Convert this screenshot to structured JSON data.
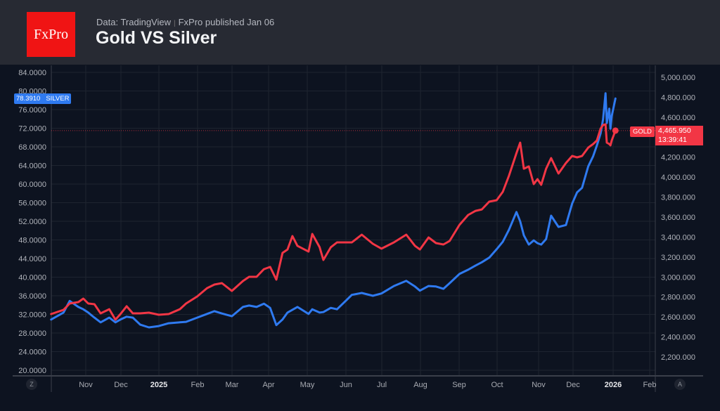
{
  "header": {
    "logo": "FxPro",
    "source": "Data: TradingView",
    "published": "FxPro published Jan 06",
    "title": "Gold VS Silver"
  },
  "labels": {
    "silver_value": "78.3910",
    "silver_name": "SILVER",
    "gold_name": "GOLD",
    "gold_value": "4,465.950",
    "gold_time": "13:39:41",
    "zoom_button": "Z",
    "auto_button": "A"
  },
  "colors": {
    "silver": "#2f7af0",
    "gold": "#f23645",
    "background": "#0d1320",
    "header": "#272a33"
  },
  "chart_data": {
    "type": "line",
    "title": "Gold VS Silver",
    "grid": true,
    "x_tick_labels": [
      "Nov",
      "Dec",
      "2025",
      "Feb",
      "Mar",
      "Apr",
      "May",
      "Jun",
      "Jul",
      "Aug",
      "Sep",
      "Oct",
      "Nov",
      "Dec",
      "2026",
      "Feb"
    ],
    "left_axis": {
      "range": [
        20,
        84
      ],
      "ticks": [
        "84.0000",
        "80.0000",
        "76.0000",
        "72.0000",
        "68.0000",
        "64.0000",
        "60.0000",
        "56.0000",
        "52.0000",
        "48.0000",
        "44.0000",
        "40.0000",
        "36.0000",
        "32.0000",
        "28.0000",
        "24.0000",
        "20.0000"
      ]
    },
    "right_axis": {
      "range": [
        2200,
        5000
      ],
      "ticks": [
        "5,000.000",
        "4,800.000",
        "4,600.000",
        "4,400.000",
        "4,200.000",
        "4,000.000",
        "3,800.000",
        "3,600.000",
        "3,400.000",
        "3,200.000",
        "3,000.000",
        "2,800.000",
        "2,600.000",
        "2,400.000",
        "2,200.000"
      ]
    },
    "x": [
      "2024-10-04",
      "2024-10-14",
      "2024-10-19",
      "2024-10-26",
      "2024-10-30",
      "2024-11-03",
      "2024-11-08",
      "2024-11-13",
      "2024-11-20",
      "2024-11-25",
      "2024-11-29",
      "2024-12-04",
      "2024-12-09",
      "2024-12-15",
      "2024-12-22",
      "2024-12-30",
      "2025-01-07",
      "2025-01-16",
      "2025-01-21",
      "2025-01-30",
      "2025-02-07",
      "2025-02-13",
      "2025-02-19",
      "2025-02-27",
      "2025-03-08",
      "2025-03-13",
      "2025-03-19",
      "2025-03-25",
      "2025-03-30",
      "2025-04-04",
      "2025-04-09",
      "2025-04-13",
      "2025-04-17",
      "2025-04-21",
      "2025-04-30",
      "2025-05-03",
      "2025-05-09",
      "2025-05-12",
      "2025-05-18",
      "2025-05-23",
      "2025-05-30",
      "2025-06-04",
      "2025-06-12",
      "2025-06-21",
      "2025-06-28",
      "2025-07-08",
      "2025-07-18",
      "2025-07-25",
      "2025-07-29",
      "2025-08-05",
      "2025-08-11",
      "2025-08-17",
      "2025-08-22",
      "2025-08-30",
      "2025-09-06",
      "2025-09-12",
      "2025-09-17",
      "2025-09-23",
      "2025-09-29",
      "2025-10-04",
      "2025-10-09",
      "2025-10-15",
      "2025-10-18",
      "2025-10-21",
      "2025-10-25",
      "2025-10-29",
      "2025-11-01",
      "2025-11-04",
      "2025-11-08",
      "2025-11-12",
      "2025-11-18",
      "2025-11-24",
      "2025-11-29",
      "2025-12-03",
      "2025-12-07",
      "2025-12-12",
      "2025-12-16",
      "2025-12-19",
      "2025-12-22",
      "2025-12-24",
      "2025-12-26",
      "2025-12-27",
      "2025-12-29",
      "2025-12-30",
      "2025-12-31",
      "2026-01-03"
    ],
    "series": [
      {
        "name": "SILVER",
        "axis": "left",
        "color": "#2f7af0",
        "values": [
          30.9,
          32.4,
          34.9,
          33.6,
          33.1,
          32.4,
          31.3,
          30.3,
          31.3,
          30.3,
          30.9,
          31.5,
          31.3,
          29.8,
          29.2,
          29.5,
          30.1,
          30.3,
          30.4,
          31.3,
          32.1,
          32.7,
          32.2,
          31.6,
          33.6,
          33.9,
          33.6,
          34.3,
          33.4,
          29.7,
          30.9,
          32.4,
          33.0,
          33.6,
          32.1,
          33.1,
          32.4,
          32.5,
          33.4,
          33.1,
          34.9,
          36.2,
          36.6,
          36.0,
          36.5,
          38.1,
          39.2,
          38.0,
          37.1,
          38.1,
          38.0,
          37.5,
          38.7,
          40.7,
          41.6,
          42.5,
          43.2,
          44.2,
          46.0,
          47.6,
          50.2,
          54.0,
          52.0,
          49.0,
          47.0,
          47.9,
          47.3,
          47.0,
          48.2,
          53.2,
          50.8,
          51.2,
          55.8,
          58.2,
          59.2,
          63.8,
          66.0,
          68.3,
          70.9,
          73.9,
          79.5,
          73.1,
          76.2,
          71.9,
          74.6,
          78.391
        ]
      },
      {
        "name": "GOLD",
        "axis": "right",
        "color": "#f23645",
        "values": [
          2629,
          2671,
          2735,
          2749,
          2784,
          2735,
          2728,
          2636,
          2678,
          2573,
          2629,
          2707,
          2636,
          2636,
          2643,
          2622,
          2629,
          2678,
          2735,
          2805,
          2889,
          2925,
          2939,
          2861,
          2960,
          3002,
          3002,
          3079,
          3101,
          2974,
          3241,
          3276,
          3410,
          3312,
          3255,
          3431,
          3298,
          3171,
          3298,
          3347,
          3347,
          3347,
          3424,
          3333,
          3284,
          3347,
          3424,
          3312,
          3276,
          3396,
          3340,
          3326,
          3361,
          3523,
          3621,
          3663,
          3677,
          3755,
          3769,
          3853,
          4015,
          4240,
          4346,
          4085,
          4107,
          3931,
          3980,
          3924,
          4085,
          4191,
          4036,
          4142,
          4212,
          4198,
          4212,
          4296,
          4332,
          4367,
          4486,
          4522,
          4529,
          4346,
          4332,
          4318,
          4367,
          4465.95
        ]
      }
    ]
  }
}
